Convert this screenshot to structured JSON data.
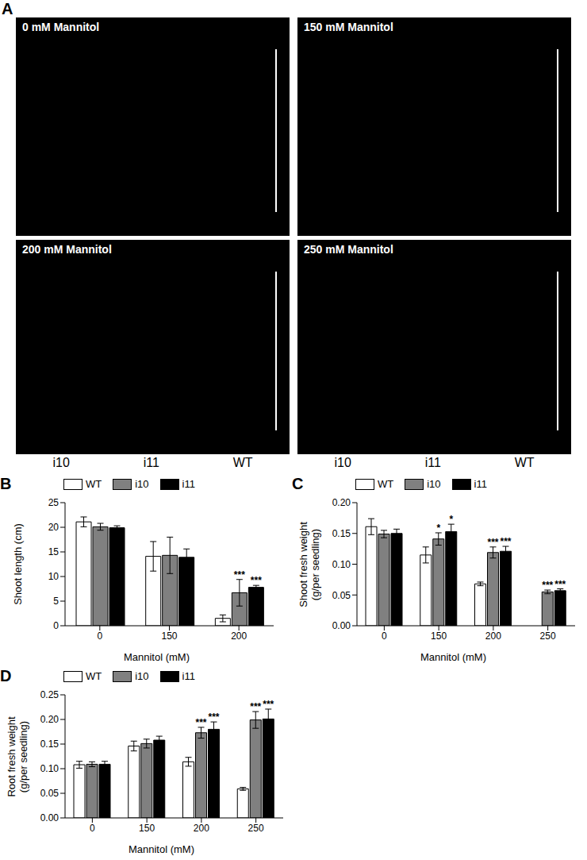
{
  "panel_a": {
    "panel": "A",
    "images": [
      "0 mM Mannitol",
      "150 mM Mannitol",
      "200 mM Mannitol",
      "250 mM Mannitol"
    ],
    "labels": [
      "i10",
      "i11",
      "WT"
    ]
  },
  "chart_data": [
    {
      "panel": "B",
      "type": "bar",
      "y_label": "Shoot length (cm)",
      "x_label": "Mannitol (mM)",
      "categories": [
        "0",
        "150",
        "200"
      ],
      "ylim": [
        0,
        25
      ],
      "yticks": [
        0,
        5,
        10,
        15,
        20,
        25
      ],
      "grid": false,
      "legend": "top",
      "series": [
        {
          "name": "WT",
          "color": "#ffffff",
          "values": [
            21.1,
            14.1,
            1.5
          ],
          "errors": [
            1.0,
            3.0,
            0.7
          ],
          "significance": [
            null,
            null,
            null
          ]
        },
        {
          "name": "i10",
          "color": "#808080",
          "values": [
            20.1,
            14.3,
            6.7
          ],
          "errors": [
            0.7,
            3.7,
            2.7
          ],
          "significance": [
            null,
            null,
            "***"
          ]
        },
        {
          "name": "i11",
          "color": "#000000",
          "values": [
            19.9,
            13.9,
            7.8
          ],
          "errors": [
            0.4,
            1.7,
            0.4
          ],
          "significance": [
            null,
            null,
            "***"
          ]
        }
      ]
    },
    {
      "panel": "C",
      "type": "bar",
      "y_label": "Shoot fresh weight\n(g/per seedling)",
      "x_label": "Mannitol (mM)",
      "categories": [
        "0",
        "150",
        "200",
        "250"
      ],
      "ylim": [
        0,
        0.2
      ],
      "yticks": [
        {
          "value": 0,
          "label": "0.00"
        },
        {
          "value": 0.05,
          "label": "0.05"
        },
        {
          "value": 0.1,
          "label": "0.10"
        },
        {
          "value": 0.15,
          "label": "0.15"
        },
        {
          "value": 0.2,
          "label": "0.20"
        }
      ],
      "grid": false,
      "legend": "top",
      "series": [
        {
          "name": "WT",
          "color": "#ffffff",
          "values": [
            0.161,
            0.115,
            0.068,
            null
          ],
          "errors": [
            0.013,
            0.013,
            0.003,
            null
          ],
          "significance": [
            null,
            null,
            null,
            null
          ]
        },
        {
          "name": "i10",
          "color": "#808080",
          "values": [
            0.149,
            0.141,
            0.119,
            0.055
          ],
          "errors": [
            0.006,
            0.01,
            0.009,
            0.003
          ],
          "significance": [
            null,
            "*",
            "***",
            "***"
          ]
        },
        {
          "name": "i11",
          "color": "#000000",
          "values": [
            0.15,
            0.153,
            0.121,
            0.057
          ],
          "errors": [
            0.007,
            0.012,
            0.008,
            0.003
          ],
          "significance": [
            null,
            "*",
            "***",
            "***"
          ]
        }
      ]
    },
    {
      "panel": "D",
      "type": "bar",
      "y_label": "Root fresh weight\n(g/per seedling)",
      "x_label": "Mannitol (mM)",
      "categories": [
        "0",
        "150",
        "200",
        "250"
      ],
      "ylim": [
        0,
        0.25
      ],
      "yticks": [
        {
          "value": 0,
          "label": "0.00"
        },
        {
          "value": 0.05,
          "label": "0.05"
        },
        {
          "value": 0.1,
          "label": "0.10"
        },
        {
          "value": 0.15,
          "label": "0.15"
        },
        {
          "value": 0.2,
          "label": "0.20"
        },
        {
          "value": 0.25,
          "label": "0.25"
        }
      ],
      "grid": false,
      "legend": "top",
      "series": [
        {
          "name": "WT",
          "color": "#ffffff",
          "values": [
            0.108,
            0.146,
            0.114,
            0.059
          ],
          "errors": [
            0.007,
            0.01,
            0.009,
            0.003
          ],
          "significance": [
            null,
            null,
            null,
            null
          ]
        },
        {
          "name": "i10",
          "color": "#808080",
          "values": [
            0.109,
            0.151,
            0.173,
            0.199
          ],
          "errors": [
            0.005,
            0.009,
            0.011,
            0.017
          ],
          "significance": [
            null,
            null,
            "***",
            "***"
          ]
        },
        {
          "name": "i11",
          "color": "#000000",
          "values": [
            0.109,
            0.158,
            0.18,
            0.201
          ],
          "errors": [
            0.006,
            0.008,
            0.015,
            0.02
          ],
          "significance": [
            null,
            null,
            "***",
            "***"
          ]
        }
      ]
    }
  ]
}
